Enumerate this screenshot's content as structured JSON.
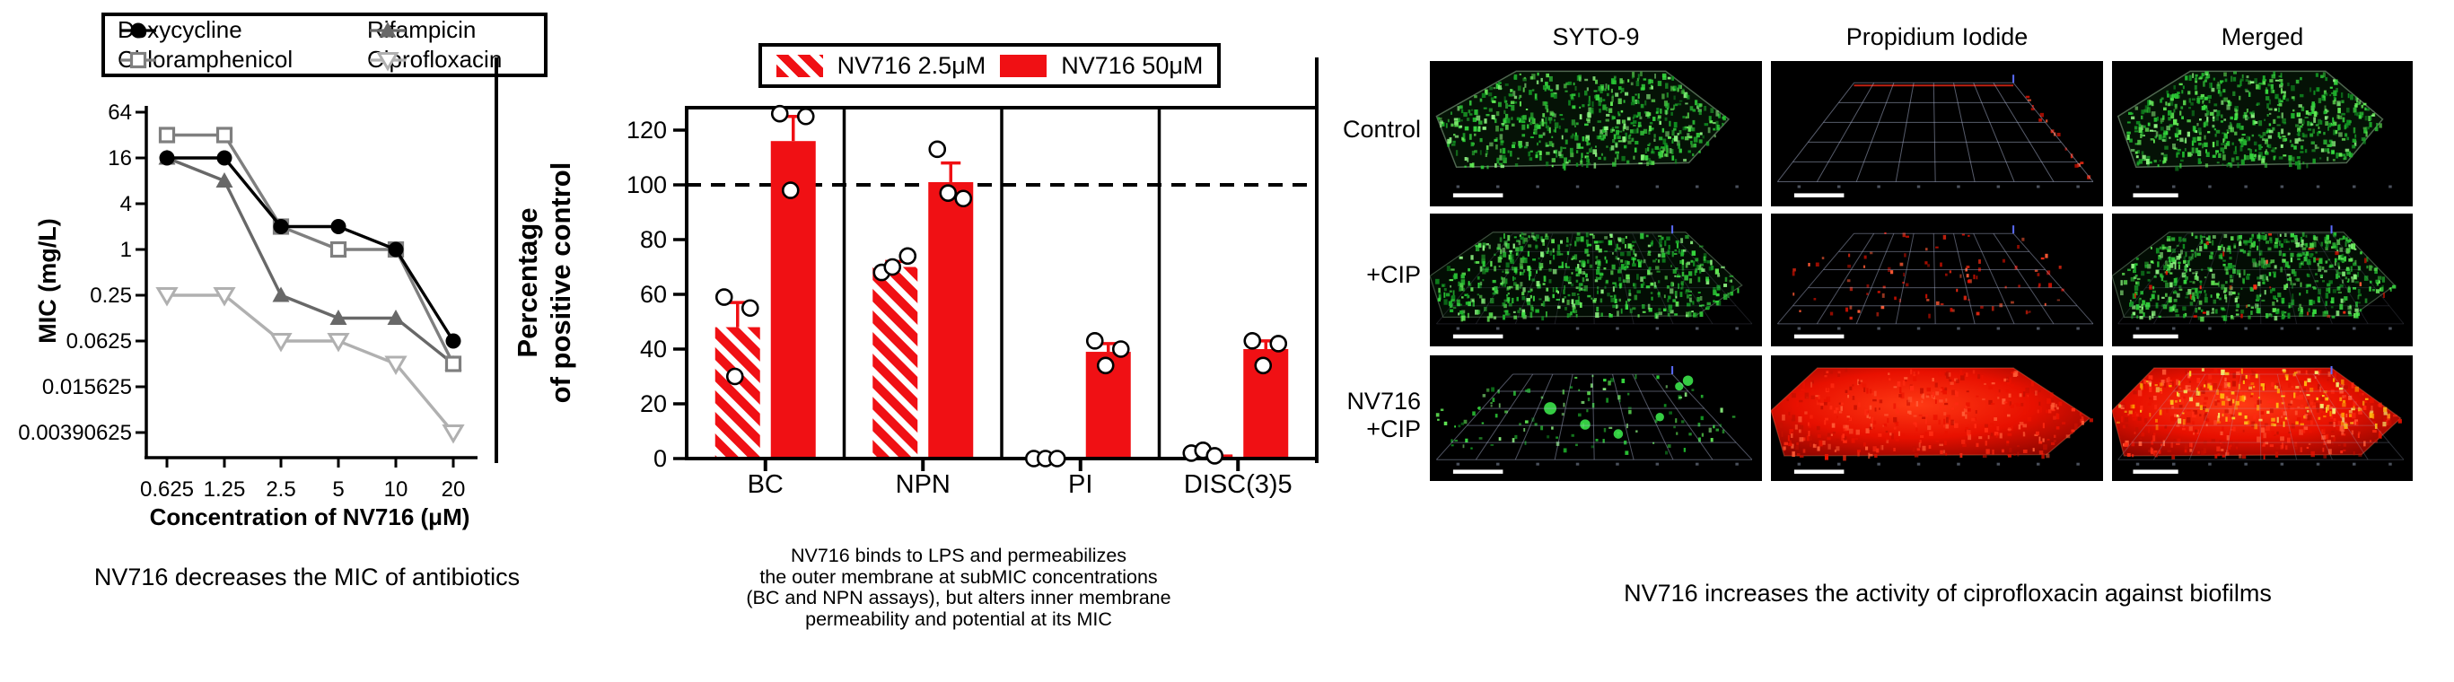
{
  "chart_data": [
    {
      "type": "line",
      "name": "mic-vs-nv716-concentration",
      "title": "",
      "xlabel": "Concentration of NV716 (μM)",
      "ylabel": "MIC (mg/L)",
      "x_categories": [
        "0.625",
        "1.25",
        "2.5",
        "5",
        "10",
        "20"
      ],
      "y_scale": "log4",
      "y_ticks": [
        "64",
        "16",
        "4",
        "1",
        "0.25",
        "0.0625",
        "0.015625",
        "0.00390625"
      ],
      "grid": false,
      "legend_position": "top",
      "series": [
        {
          "name": "Doxycycline",
          "marker": "filled-circle",
          "color": "#000000",
          "values": [
            16,
            16,
            2,
            2,
            1,
            0.0625
          ]
        },
        {
          "name": "Chloramphenicol",
          "marker": "open-square",
          "color": "#7f7f7f",
          "values": [
            32,
            32,
            2,
            1,
            1,
            0.03125
          ]
        },
        {
          "name": "Rifampicin",
          "marker": "filled-triangle",
          "color": "#686868",
          "values": [
            16,
            8,
            0.25,
            0.125,
            0.125,
            0.03125
          ]
        },
        {
          "name": "Ciprofloxacin",
          "marker": "open-triangle-down",
          "color": "#b0b0b0",
          "values": [
            0.25,
            0.25,
            0.0625,
            0.0625,
            0.03125,
            0.00390625
          ]
        }
      ],
      "caption": "NV716 decreases the MIC of antibiotics"
    },
    {
      "type": "bar",
      "name": "membrane-permeabilization-assays",
      "ylabel_lines": [
        "Percentage",
        "of positive control"
      ],
      "categories": [
        "BC",
        "NPN",
        "PI",
        "DISC(3)5"
      ],
      "y_ticks": [
        0,
        20,
        40,
        60,
        80,
        100,
        120
      ],
      "ylim": [
        0,
        128
      ],
      "reference_line": 100,
      "bar_color": "#f01014",
      "series": [
        {
          "name": "NV716 2.5μM",
          "style": "hatched",
          "values": [
            48,
            70,
            0,
            1.5
          ],
          "errors": [
            9,
            2,
            0,
            1
          ],
          "points": [
            [
              59,
              55,
              30
            ],
            [
              68,
              74,
              70
            ],
            [
              0,
              0,
              0
            ],
            [
              2,
              3,
              1
            ]
          ]
        },
        {
          "name": "NV716 50μM",
          "style": "solid",
          "values": [
            116,
            101,
            39,
            40
          ],
          "errors": [
            9,
            7,
            3,
            3
          ],
          "points": [
            [
              126,
              125,
              98
            ],
            [
              113,
              95,
              97
            ],
            [
              43,
              40,
              34
            ],
            [
              43,
              42,
              34
            ]
          ]
        }
      ],
      "caption_lines": [
        "NV716 binds to LPS and permeabilizes",
        "the outer membrane at subMIC concentrations",
        "(BC and NPN assays), but alters inner membrane",
        "permeability and potential at its MIC"
      ]
    }
  ],
  "biofilm": {
    "columns": [
      "SYTO-9",
      "Propidium Iodide",
      "Merged"
    ],
    "rows": [
      {
        "label_lines": [
          "Control"
        ],
        "cells": [
          "dense-green",
          "grid-red-trace",
          "dense-green"
        ]
      },
      {
        "label_lines": [
          "+CIP"
        ],
        "cells": [
          "dense-green-flat",
          "sparse-red",
          "dense-green-some-red"
        ]
      },
      {
        "label_lines": [
          "NV716",
          "+CIP"
        ],
        "cells": [
          "sparse-green",
          "dense-red",
          "dense-red-yellow"
        ]
      }
    ],
    "colors": {
      "live": "#2bc736",
      "dead": "#ea1200",
      "overlay": "#ffd41f"
    },
    "caption": "NV716 increases the activity of ciprofloxacin against biofilms"
  }
}
